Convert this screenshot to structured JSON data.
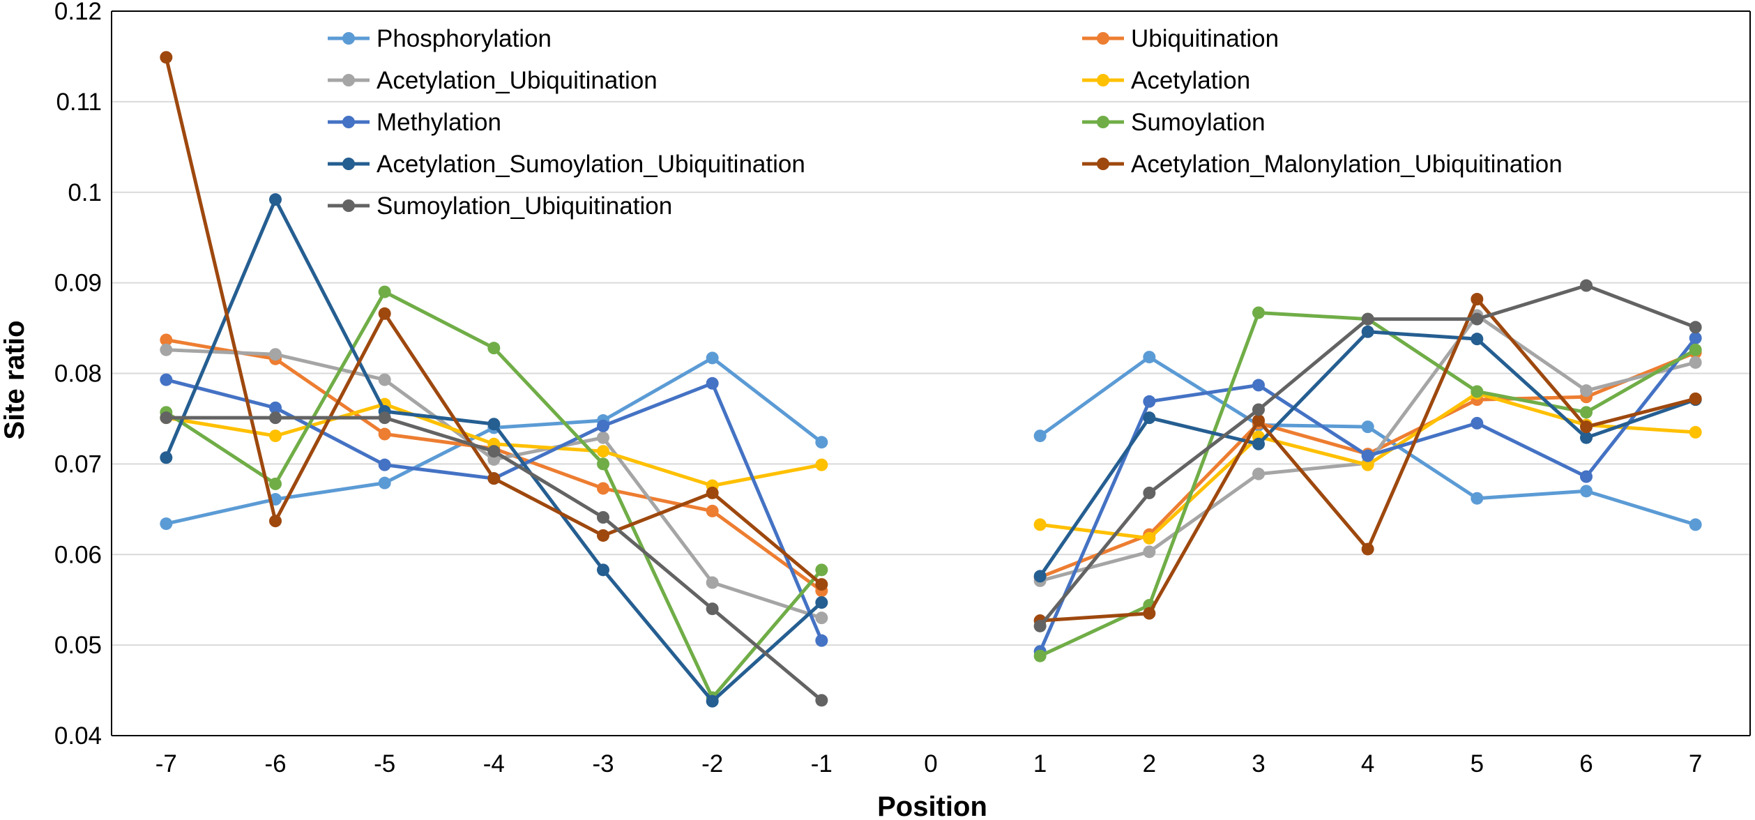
{
  "chart_data": {
    "type": "line",
    "title": "",
    "xlabel": "Position",
    "ylabel": "Site ratio",
    "categories": [
      "-7",
      "-6",
      "-5",
      "-4",
      "-3",
      "-2",
      "-1",
      "0",
      "1",
      "2",
      "3",
      "4",
      "5",
      "6",
      "7"
    ],
    "ylim": [
      0.04,
      0.12
    ],
    "yticks": [
      0.04,
      0.05,
      0.06,
      0.07,
      0.08,
      0.09,
      0.1,
      0.11,
      0.12
    ],
    "ytick_labels": [
      "0.04",
      "0.05",
      "0.06",
      "0.07",
      "0.08",
      "0.09",
      "0.1",
      "0.11",
      "0.12"
    ],
    "grid": true,
    "legend": "top",
    "series": [
      {
        "name": "Phosphorylation",
        "color": "#5B9BD5",
        "values": [
          0.0634,
          0.0661,
          0.0679,
          0.074,
          0.0748,
          0.0817,
          0.0724,
          null,
          0.0731,
          0.0818,
          0.0743,
          0.0741,
          0.0662,
          0.067,
          0.0633
        ]
      },
      {
        "name": "Ubiquitination",
        "color": "#ED7D31",
        "values": [
          0.0837,
          0.0816,
          0.0733,
          0.0717,
          0.0673,
          0.0648,
          0.056,
          null,
          0.0575,
          0.0622,
          0.0745,
          0.0711,
          0.0771,
          0.0774,
          0.0823
        ]
      },
      {
        "name": "Acetylation_Ubiquitination",
        "color": "#A5A5A5",
        "values": [
          0.0826,
          0.0821,
          0.0793,
          0.0705,
          0.0729,
          0.0569,
          0.053,
          null,
          0.0571,
          0.0603,
          0.0689,
          0.0701,
          0.0864,
          0.0781,
          0.0812
        ]
      },
      {
        "name": "Acetylation",
        "color": "#FFC000",
        "values": [
          0.0751,
          0.0731,
          0.0766,
          0.0722,
          0.0714,
          0.0676,
          0.0699,
          null,
          0.0633,
          0.0618,
          0.073,
          0.0699,
          0.0778,
          0.0743,
          0.0735
        ]
      },
      {
        "name": "Methylation",
        "color": "#4472C4",
        "values": [
          0.0793,
          0.0762,
          0.0699,
          0.0684,
          0.0742,
          0.0789,
          0.0505,
          null,
          0.0493,
          0.0769,
          0.0787,
          0.0709,
          0.0745,
          0.0686,
          0.0839
        ]
      },
      {
        "name": "Sumoylation",
        "color": "#70AD47",
        "values": [
          0.0757,
          0.0678,
          0.089,
          0.0828,
          0.07,
          0.0442,
          0.0583,
          null,
          0.0488,
          0.0544,
          0.0867,
          0.086,
          0.078,
          0.0757,
          0.0826
        ]
      },
      {
        "name": "Acetylation_Sumoylation_Ubiquitination",
        "color": "#255E91",
        "values": [
          0.0707,
          0.0992,
          0.0758,
          0.0744,
          0.0583,
          0.0438,
          0.0547,
          null,
          0.0576,
          0.0751,
          0.0722,
          0.0846,
          0.0838,
          0.0729,
          0.0771
        ]
      },
      {
        "name": "Acetylation_Malonylation_Ubiquitination",
        "color": "#9E480E",
        "values": [
          0.1149,
          0.0637,
          0.0866,
          0.0684,
          0.0621,
          0.0668,
          0.0567,
          null,
          0.0527,
          0.0535,
          0.0748,
          0.0606,
          0.0882,
          0.0741,
          0.0772
        ]
      },
      {
        "name": "Sumoylation_Ubiquitination",
        "color": "#636363",
        "values": [
          0.0751,
          0.0751,
          0.0751,
          0.0714,
          0.0641,
          0.054,
          0.0439,
          null,
          0.0521,
          0.0668,
          0.076,
          0.086,
          0.086,
          0.0897,
          0.0851
        ]
      }
    ]
  }
}
